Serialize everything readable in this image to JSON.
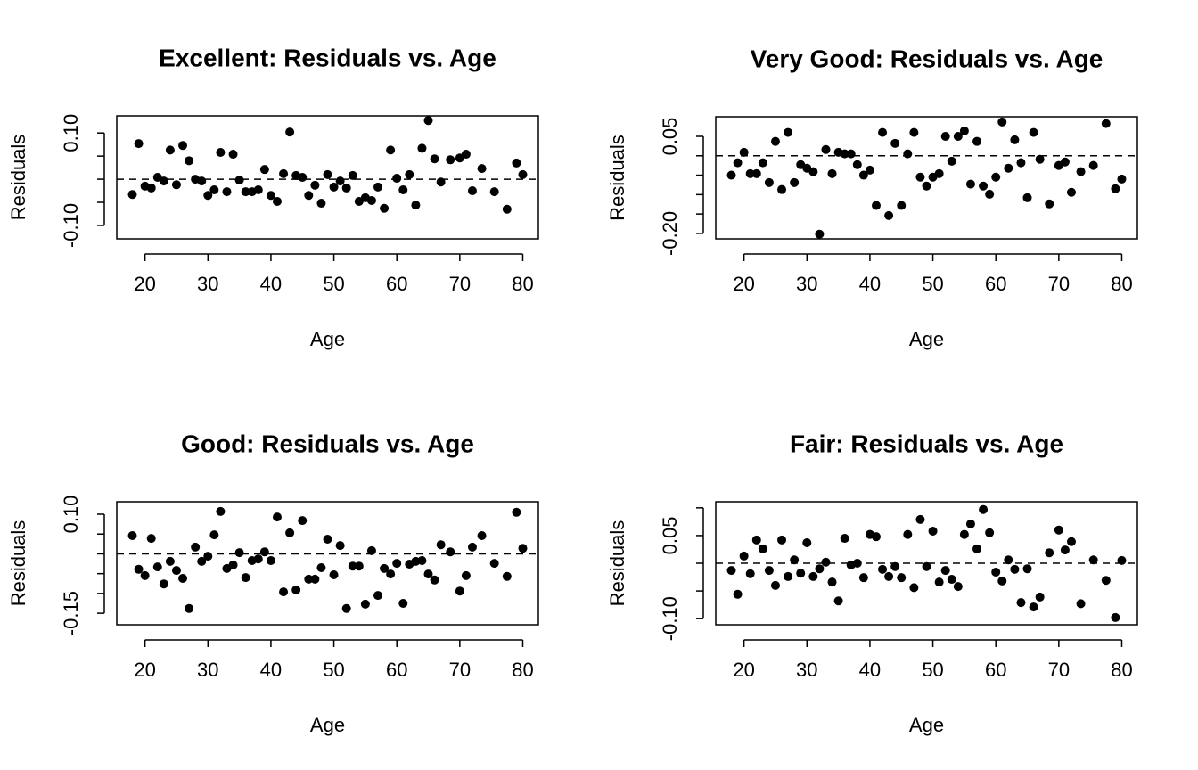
{
  "chart_data": [
    {
      "type": "scatter",
      "title": "Excellent: Residuals vs. Age",
      "xlabel": "Age",
      "ylabel": "Residuals",
      "color": "#000000",
      "x": [
        18,
        19,
        20,
        21,
        22,
        23,
        24,
        25,
        26,
        27,
        28,
        29,
        30,
        31,
        32,
        33,
        34,
        35,
        36,
        37,
        38,
        39,
        40,
        41,
        42,
        43,
        44,
        45,
        46,
        47,
        48,
        49,
        50,
        51,
        52,
        53,
        54,
        55,
        56,
        57,
        58,
        59,
        60,
        61,
        62,
        63,
        64,
        65,
        66,
        67,
        68.5,
        70,
        71,
        72,
        73.5,
        75.5,
        77.5,
        79,
        80
      ],
      "values": [
        -0.033,
        0.077,
        -0.015,
        -0.019,
        0.004,
        -0.004,
        0.063,
        -0.012,
        0.073,
        0.04,
        0.0,
        -0.004,
        -0.035,
        -0.023,
        0.058,
        -0.027,
        0.054,
        -0.002,
        -0.027,
        -0.027,
        -0.023,
        0.021,
        -0.035,
        -0.048,
        0.012,
        0.102,
        0.008,
        0.004,
        -0.035,
        -0.013,
        -0.052,
        0.01,
        -0.017,
        -0.004,
        -0.019,
        0.008,
        -0.048,
        -0.04,
        -0.046,
        -0.017,
        -0.063,
        0.063,
        0.002,
        -0.023,
        0.01,
        -0.056,
        0.067,
        0.127,
        0.044,
        -0.006,
        0.042,
        0.046,
        0.054,
        -0.025,
        0.023,
        -0.027,
        -0.065,
        0.035,
        0.01
      ],
      "xlim": [
        15.52,
        82.48
      ],
      "xticks": [
        20,
        30,
        40,
        50,
        60,
        70,
        80
      ],
      "ylim": [
        -0.129,
        0.137
      ],
      "yticks": [
        {
          "value": 0.1,
          "label": "0.10"
        },
        {
          "value": -0.1,
          "label": "-0.10"
        }
      ],
      "yminor": [
        0.05,
        0,
        -0.05
      ],
      "hline": 0,
      "hline_style": "dashed"
    },
    {
      "type": "scatter",
      "title": "Very Good: Residuals vs. Age",
      "xlabel": "Age",
      "ylabel": "Residuals",
      "color": "#000000",
      "x": [
        18,
        19,
        20,
        21,
        22,
        23,
        24,
        25,
        26,
        27,
        28,
        29,
        30,
        31,
        32,
        33,
        34,
        35,
        36,
        37,
        38,
        39,
        40,
        41,
        42,
        43,
        44,
        45,
        46,
        47,
        48,
        49,
        50,
        51,
        52,
        53,
        54,
        55,
        56,
        57,
        58,
        59,
        60,
        61,
        62,
        63,
        64,
        65,
        66,
        67,
        68.5,
        70,
        71,
        72,
        73.5,
        75.5,
        77.5,
        79,
        80
      ],
      "values": [
        -0.05,
        -0.018,
        0.009,
        -0.046,
        -0.046,
        -0.018,
        -0.069,
        0.037,
        -0.087,
        0.06,
        -0.069,
        -0.023,
        -0.032,
        -0.041,
        -0.202,
        0.016,
        -0.046,
        0.009,
        0.005,
        0.005,
        -0.023,
        -0.05,
        -0.037,
        -0.128,
        0.06,
        -0.154,
        0.032,
        -0.128,
        0.005,
        0.06,
        -0.055,
        -0.078,
        -0.055,
        -0.046,
        0.05,
        -0.014,
        0.05,
        0.064,
        -0.073,
        0.037,
        -0.078,
        -0.099,
        -0.055,
        0.087,
        -0.032,
        0.041,
        -0.018,
        -0.108,
        0.06,
        -0.009,
        -0.124,
        -0.025,
        -0.016,
        -0.094,
        -0.041,
        -0.025,
        0.083,
        -0.085,
        -0.06
      ],
      "xlim": [
        15.52,
        82.48
      ],
      "xticks": [
        20,
        30,
        40,
        50,
        60,
        70,
        80
      ],
      "ylim": [
        -0.214,
        0.1005
      ],
      "yticks": [
        {
          "value": 0.05,
          "label": "0.05"
        },
        {
          "value": -0.2,
          "label": "-0.20"
        }
      ],
      "yminor": [
        0,
        -0.05,
        -0.1,
        -0.15
      ],
      "hline": 0,
      "hline_style": "dashed"
    },
    {
      "type": "scatter",
      "title": "Good: Residuals vs. Age",
      "xlabel": "Age",
      "ylabel": "Residuals",
      "color": "#000000",
      "x": [
        18,
        19,
        20,
        21,
        22,
        23,
        24,
        25,
        26,
        27,
        28,
        29,
        30,
        31,
        32,
        33,
        34,
        35,
        36,
        37,
        38,
        39,
        40,
        41,
        42,
        43,
        44,
        45,
        46,
        47,
        48,
        49,
        50,
        51,
        52,
        53,
        54,
        55,
        56,
        57,
        58,
        59,
        60,
        61,
        62,
        63,
        64,
        65,
        66,
        67,
        68.5,
        70,
        71,
        72,
        73.5,
        75.5,
        77.5,
        79,
        80
      ],
      "values": [
        0.046,
        -0.039,
        -0.055,
        0.039,
        -0.033,
        -0.076,
        -0.019,
        -0.042,
        -0.062,
        -0.138,
        0.017,
        -0.019,
        -0.006,
        0.048,
        0.107,
        -0.037,
        -0.028,
        0.003,
        -0.06,
        -0.017,
        -0.013,
        0.005,
        -0.017,
        0.093,
        -0.096,
        0.053,
        -0.091,
        0.084,
        -0.064,
        -0.064,
        -0.035,
        0.037,
        -0.053,
        0.021,
        -0.138,
        -0.031,
        -0.031,
        -0.127,
        0.008,
        -0.105,
        -0.037,
        -0.051,
        -0.024,
        -0.125,
        -0.026,
        -0.019,
        -0.017,
        -0.051,
        -0.066,
        0.023,
        0.005,
        -0.094,
        -0.055,
        0.017,
        0.046,
        -0.024,
        -0.057,
        0.105,
        0.014
      ],
      "xlim": [
        15.52,
        82.48
      ],
      "xticks": [
        20,
        30,
        40,
        50,
        60,
        70,
        80
      ],
      "ylim": [
        -0.179,
        0.1315
      ],
      "yticks": [
        {
          "value": 0.1,
          "label": "0.10"
        },
        {
          "value": -0.15,
          "label": "-0.15"
        }
      ],
      "yminor": [
        0.05,
        0,
        -0.05,
        -0.1
      ],
      "hline": 0,
      "hline_style": "dashed"
    },
    {
      "type": "scatter",
      "title": "Fair: Residuals vs. Age",
      "xlabel": "Age",
      "ylabel": "Residuals",
      "color": "#000000",
      "x": [
        18,
        19,
        20,
        21,
        22,
        23,
        24,
        25,
        26,
        27,
        28,
        29,
        30,
        31,
        32,
        33,
        34,
        35,
        36,
        37,
        38,
        39,
        40,
        41,
        42,
        43,
        44,
        45,
        46,
        47,
        48,
        49,
        50,
        51,
        52,
        53,
        54,
        55,
        56,
        57,
        58,
        59,
        60,
        61,
        62,
        63,
        64,
        65,
        66,
        67,
        68.5,
        70,
        71,
        72,
        73.5,
        75.5,
        77.5,
        79,
        80
      ],
      "values": [
        -0.013,
        -0.056,
        0.013,
        -0.019,
        0.042,
        0.026,
        -0.013,
        -0.04,
        0.042,
        -0.024,
        0.006,
        -0.018,
        0.037,
        -0.024,
        -0.01,
        0.002,
        -0.034,
        -0.068,
        0.045,
        -0.003,
        0.0,
        -0.026,
        0.052,
        0.048,
        -0.011,
        -0.024,
        -0.006,
        -0.026,
        0.052,
        -0.044,
        0.079,
        -0.006,
        0.058,
        -0.034,
        -0.013,
        -0.029,
        -0.042,
        0.052,
        0.071,
        0.026,
        0.097,
        0.055,
        -0.016,
        -0.032,
        0.006,
        -0.011,
        -0.071,
        -0.01,
        -0.079,
        -0.061,
        0.019,
        0.06,
        0.024,
        0.039,
        -0.073,
        0.006,
        -0.031,
        -0.098,
        0.005
      ],
      "xlim": [
        15.52,
        82.48
      ],
      "xticks": [
        20,
        30,
        40,
        50,
        60,
        70,
        80
      ],
      "ylim": [
        -0.111,
        0.111
      ],
      "yticks": [
        {
          "value": 0.05,
          "label": "0.05"
        },
        {
          "value": -0.1,
          "label": "-0.10"
        }
      ],
      "yminor": [
        0.1,
        0,
        -0.05
      ],
      "hline": 0,
      "hline_style": "dashed"
    }
  ]
}
